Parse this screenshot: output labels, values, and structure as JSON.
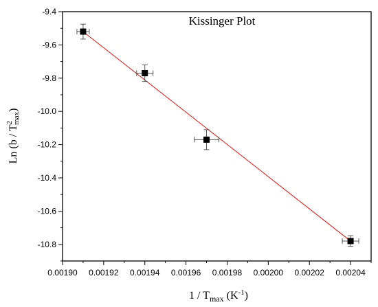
{
  "chart_data": {
    "type": "scatter",
    "title": "Kissinger Plot",
    "xlabel": {
      "prefix": "1 / T",
      "sub": "max",
      "suffix": " (K",
      "sup": "-1",
      "close": ")"
    },
    "ylabel": {
      "prefix": "Ln (b / T",
      "sup": "2",
      "sub": "max",
      "close": ")"
    },
    "xlim": [
      0.0019,
      0.00205
    ],
    "ylim": [
      -10.9,
      -9.4
    ],
    "xticks": [
      0.0019,
      0.00192,
      0.00194,
      0.00196,
      0.00198,
      0.002,
      0.00202,
      0.00204
    ],
    "xtick_labels": [
      "0.00190",
      "0.00192",
      "0.00194",
      "0.00196",
      "0.00198",
      "0.00200",
      "0.00202",
      "0.00204"
    ],
    "yticks": [
      -9.4,
      -9.6,
      -9.8,
      -10.0,
      -10.2,
      -10.4,
      -10.6,
      -10.8
    ],
    "ytick_labels": [
      "-9.4",
      "-9.6",
      "-9.8",
      "-10.0",
      "-10.2",
      "-10.4",
      "-10.6",
      "-10.8"
    ],
    "grid": false,
    "points": [
      {
        "x": 0.00191,
        "y": -9.52,
        "xerr": 3e-06,
        "yerr": 0.045
      },
      {
        "x": 0.00194,
        "y": -9.77,
        "xerr": 4e-06,
        "yerr": 0.05
      },
      {
        "x": 0.00197,
        "y": -10.17,
        "xerr": 6e-06,
        "yerr": 0.06
      },
      {
        "x": 0.00204,
        "y": -10.78,
        "xerr": 4e-06,
        "yerr": 0.032
      }
    ],
    "fit_line": {
      "x": [
        0.00191,
        0.00204
      ],
      "y": [
        -9.52,
        -10.78
      ]
    },
    "colors": {
      "points": "#000000",
      "fit_line": "#e8231e",
      "error_bars": "#555555",
      "axes": "#000000"
    }
  }
}
